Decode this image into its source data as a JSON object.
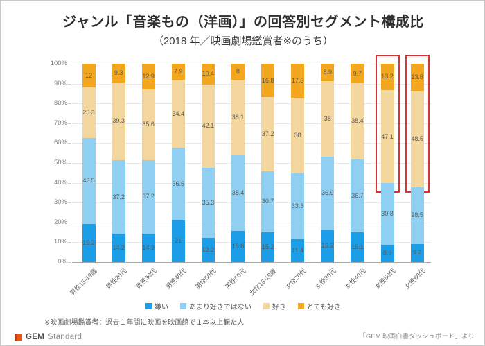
{
  "title": "ジャンル「音楽もの（洋画）」の回答別セグメント構成比",
  "subtitle": "（2018 年／映画劇場鑑賞者※のうち）",
  "chart_data": {
    "type": "bar",
    "stacked": true,
    "percent": true,
    "title": "ジャンル「音楽もの（洋画）」の回答別セグメント構成比",
    "subtitle": "（2018 年／映画劇場鑑賞者※のうち）",
    "categories": [
      "男性15-19歳",
      "男性20代",
      "男性30代",
      "男性40代",
      "男性50代",
      "男性60代",
      "女性15-19歳",
      "女性20代",
      "女性30代",
      "女性40代",
      "女性50代",
      "女性60代"
    ],
    "series": [
      {
        "name": "嫌い",
        "key": "dislike",
        "color": "#1b9de8",
        "values": [
          19.2,
          14.2,
          14.3,
          21,
          12.2,
          15.6,
          15.2,
          11.4,
          16.2,
          15.1,
          8.9,
          9.2
        ]
      },
      {
        "name": "あまり好きではない",
        "key": "somewhat-dislike",
        "color": "#8fd0f2",
        "values": [
          43.5,
          37.2,
          37.2,
          36.6,
          35.3,
          38.4,
          30.7,
          33.3,
          36.9,
          36.7,
          30.8,
          28.5
        ]
      },
      {
        "name": "好き",
        "key": "like",
        "color": "#f3d79e",
        "values": [
          25.3,
          39.3,
          35.6,
          34.4,
          42.1,
          38.1,
          37.2,
          38,
          38,
          38.4,
          47.1,
          48.5
        ]
      },
      {
        "name": "とても好き",
        "key": "love",
        "color": "#f2a71e",
        "values": [
          12,
          9.3,
          12.9,
          7.9,
          10.4,
          8,
          16.8,
          17.3,
          8.9,
          9.7,
          13.2,
          13.8
        ]
      }
    ],
    "y_ticks": [
      "0%",
      "10%",
      "20%",
      "30%",
      "40%",
      "50%",
      "60%",
      "70%",
      "80%",
      "90%",
      "100%"
    ],
    "ylim": [
      0,
      100
    ],
    "grid": true,
    "legend_position": "bottom",
    "highlight": {
      "categories": [
        "女性50代",
        "女性60代"
      ],
      "color": "#d93434"
    }
  },
  "footnote": "※映画劇場鑑賞者：過去１年間に映画を映画館で１本以上観た人",
  "footer": {
    "logo_bold": "GEM",
    "logo_rest": "Standard",
    "source": "「GEM 映画白書ダッシュボード」より"
  }
}
